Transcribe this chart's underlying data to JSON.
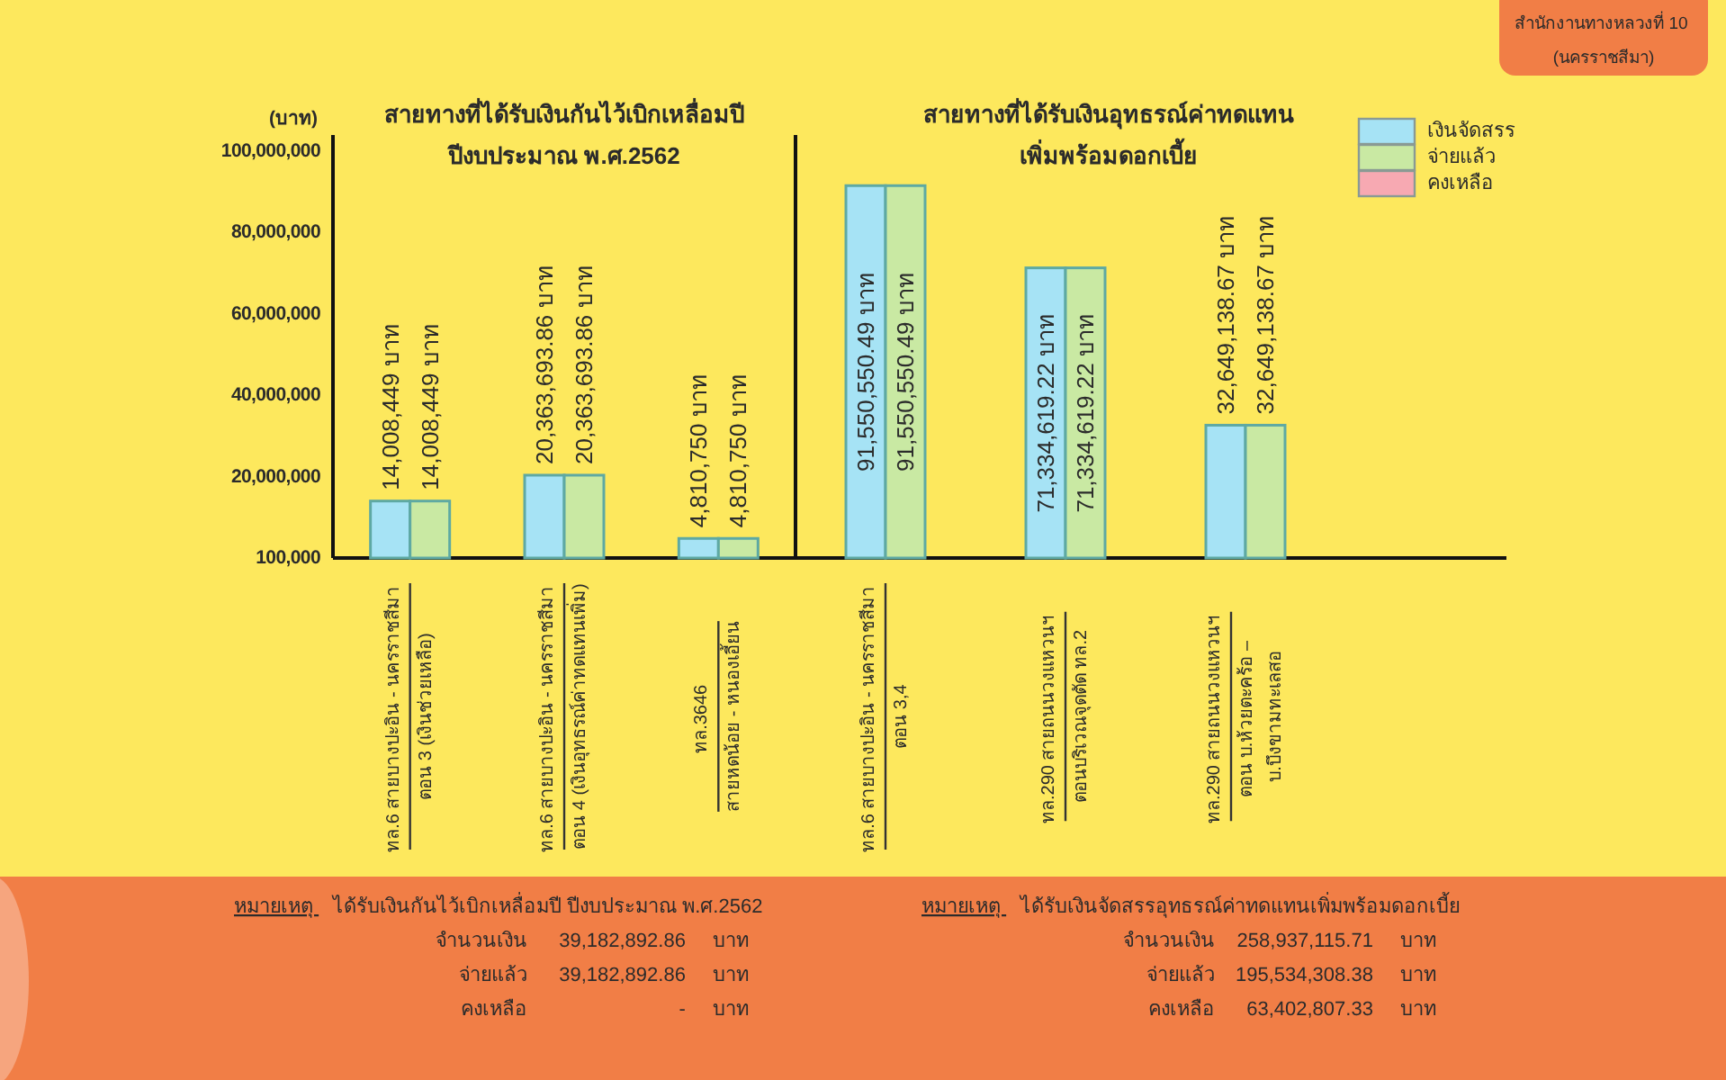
{
  "chart_data": [
    {
      "type": "bar",
      "title": "สายทางที่ได้รับเงินกันไว้เบิกเหลื่อมปี",
      "subtitle": "ปีงบประมาณ พ.ศ.2562",
      "ylabel": "(บาท)",
      "categories": [
        "ทล.6 สายบางปะอิน - นครราชสีมา\nตอน 3 (เงินช่วยเหลือ)",
        "ทล.6 สายบางปะอิน - นครราชสีมา\nตอน 4 (เงินอุทธรณ์ค่าทดแทนเพิ่ม)",
        "ทล.3646\nสายหดน้อย - หนองเอี้ยน"
      ],
      "series": [
        {
          "color": "#a6e3f5",
          "values": [
            14008449,
            20363693.86,
            4810750
          ],
          "value_labels": [
            "14,008,449 บาท",
            "20,363,693.86 บาท",
            "4,810,750 บาท"
          ]
        },
        {
          "color": "#c9e9a3",
          "values": [
            14008449,
            20363693.86,
            4810750
          ],
          "value_labels": [
            "14,008,449 บาท",
            "20,363,693.86 บาท",
            "4,810,750 บาท"
          ]
        }
      ],
      "ylim": [
        0,
        104000000
      ],
      "yticks": [
        {
          "value": 100000,
          "label": "100,000"
        },
        {
          "value": 20000000,
          "label": "20,000,000"
        },
        {
          "value": 40000000,
          "label": "40,000,000"
        },
        {
          "value": 60000000,
          "label": "60,000,000"
        },
        {
          "value": 80000000,
          "label": "80,000,000"
        },
        {
          "value": 100000000,
          "label": "100,000,000"
        }
      ],
      "annotations": [
        "หมายเหตุ ได้รับเงินกันไว้เบิกเหลื่อมปี ปีงบประมาณ พ.ศ.2562",
        "จำนวนเงิน 39,182,892.86 บาท",
        "จ่ายแล้ว 39,182,892.86 บาท",
        "คงเหลือ - บาท"
      ]
    },
    {
      "type": "bar",
      "title": "สายทางที่ได้รับเงินอุทธรณ์ค่าทดแทน",
      "subtitle": "เพิ่มพร้อมดอกเบี้ย",
      "categories": [
        "ทล.6 สายบางปะอิน - นครราชสีมา\nตอน 3,4",
        "ทล.290 สายถนนวงแหวนฯ\nตอนบริเวณจุดตัด ทล.2",
        "ทล.290 สายถนนวงแหวนฯ\nตอน บ.ห้วยตะคร้อ – บ.บึงขามทะเลสอ"
      ],
      "series": [
        {
          "name": "เงินจัดสรร",
          "color": "#a6e3f5",
          "values": [
            91550550.49,
            71334619.22,
            32649138.67
          ],
          "value_labels": [
            "91,550,550.49 บาท",
            "71,334,619.22 บาท",
            "32,649,138.67 บาท"
          ]
        },
        {
          "name": "จ่ายแล้ว",
          "color": "#c9e9a3",
          "values": [
            91550550.49,
            71334619.22,
            32649138.67
          ],
          "value_labels": [
            "91,550,550.49 บาท",
            "71,334,619.22 บาท",
            "32,649,138.67 บาท"
          ]
        },
        {
          "name": "คงเหลือ",
          "color": "#f7a9b2",
          "values": [
            null,
            null,
            null
          ]
        }
      ],
      "ylim": [
        0,
        104000000
      ],
      "tick_labels": "x",
      "legend": "top right",
      "annotations": [
        "หมายเหตุ ได้รับเงินจัดสรรอุทธรณ์ค่าทดแทนเพิ่มพร้อมดอกเบี้ย",
        "จำนวนเงิน 258,937,115.71 บาท",
        "จ่ายแล้ว 195,534,308.38 บาท",
        "คงเหลือ 63,402,807.33 บาท",
        "สำนักงานทางหลวงที่ 10 (นครราชสีมา)"
      ]
    }
  ]
}
